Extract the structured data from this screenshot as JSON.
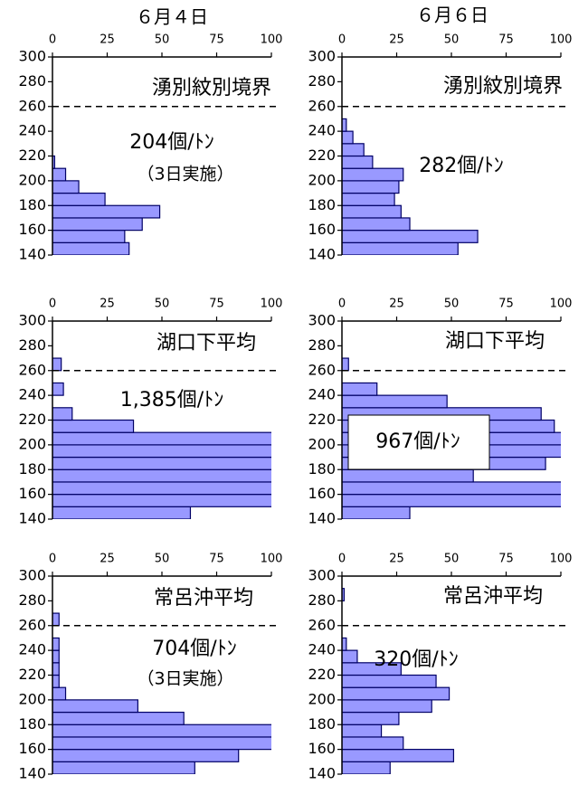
{
  "column_titles": [
    "６月４日",
    "６月６日"
  ],
  "chart_data": [
    {
      "type": "histogram",
      "label": "湧別紋別境界",
      "annotation": "204個/ﾄﾝ",
      "note": "（3日実施）",
      "bins": [
        140,
        150,
        160,
        170,
        180,
        190,
        200,
        210,
        220,
        230,
        240,
        250,
        260,
        270,
        280,
        290,
        300
      ],
      "values": [
        35,
        33,
        41,
        49,
        24,
        12,
        6,
        1,
        0,
        0,
        0,
        0,
        0,
        0,
        0,
        0
      ],
      "xlim": [
        0,
        100
      ],
      "xticks": [
        0,
        25,
        50,
        75,
        100
      ],
      "ylim": [
        140,
        300
      ],
      "yticks": [
        140,
        160,
        180,
        200,
        220,
        240,
        260,
        280,
        300
      ],
      "reference_line": 260,
      "color": "#9999ff",
      "annotation_box": false
    },
    {
      "type": "histogram",
      "label": "湧別紋別境界",
      "annotation": "282個/ﾄﾝ",
      "bins": [
        140,
        150,
        160,
        170,
        180,
        190,
        200,
        210,
        220,
        230,
        240,
        250,
        260,
        270,
        280,
        290,
        300
      ],
      "values": [
        53,
        62,
        31,
        27,
        24,
        26,
        28,
        14,
        10,
        5,
        2,
        0,
        0,
        0,
        0,
        0
      ],
      "xlim": [
        0,
        100
      ],
      "xticks": [
        0,
        25,
        50,
        75,
        100
      ],
      "ylim": [
        140,
        300
      ],
      "yticks": [
        140,
        160,
        180,
        200,
        220,
        240,
        260,
        280,
        300
      ],
      "reference_line": 260,
      "color": "#9999ff",
      "annotation_box": false
    },
    {
      "type": "histogram",
      "label": "湖口下平均",
      "annotation": "1,385個/ﾄﾝ",
      "bins": [
        140,
        150,
        160,
        170,
        180,
        190,
        200,
        210,
        220,
        230,
        240,
        250,
        260,
        270,
        280,
        290,
        300
      ],
      "values": [
        63,
        110,
        110,
        110,
        110,
        110,
        110,
        37,
        9,
        0,
        5,
        0,
        4,
        0,
        0,
        0
      ],
      "xlim": [
        0,
        100
      ],
      "xticks": [
        0,
        25,
        50,
        75,
        100
      ],
      "ylim": [
        140,
        300
      ],
      "yticks": [
        140,
        160,
        180,
        200,
        220,
        240,
        260,
        280,
        300
      ],
      "reference_line": 260,
      "color": "#9999ff",
      "annotation_box": false
    },
    {
      "type": "histogram",
      "label": "湖口下平均",
      "annotation": "967個/ﾄﾝ",
      "bins": [
        140,
        150,
        160,
        170,
        180,
        190,
        200,
        210,
        220,
        230,
        240,
        250,
        260,
        270,
        280,
        290,
        300
      ],
      "values": [
        31,
        110,
        110,
        60,
        93,
        110,
        110,
        97,
        91,
        48,
        16,
        0,
        3,
        0,
        0,
        0
      ],
      "xlim": [
        0,
        100
      ],
      "xticks": [
        0,
        25,
        50,
        75,
        100
      ],
      "ylim": [
        140,
        300
      ],
      "yticks": [
        140,
        160,
        180,
        200,
        220,
        240,
        260,
        280,
        300
      ],
      "reference_line": 260,
      "color": "#9999ff",
      "annotation_box": true
    },
    {
      "type": "histogram",
      "label": "常呂沖平均",
      "annotation": "704個/ﾄﾝ",
      "note": "（3日実施）",
      "bins": [
        140,
        150,
        160,
        170,
        180,
        190,
        200,
        210,
        220,
        230,
        240,
        250,
        260,
        270,
        280,
        290,
        300
      ],
      "values": [
        65,
        85,
        110,
        110,
        60,
        39,
        6,
        3,
        3,
        3,
        3,
        0,
        3,
        0,
        0,
        0
      ],
      "xlim": [
        0,
        100
      ],
      "xticks": [
        0,
        25,
        50,
        75,
        100
      ],
      "ylim": [
        140,
        300
      ],
      "yticks": [
        140,
        160,
        180,
        200,
        220,
        240,
        260,
        280,
        300
      ],
      "reference_line": 260,
      "color": "#9999ff",
      "annotation_box": false
    },
    {
      "type": "histogram",
      "label": "常呂沖平均",
      "annotation": "320個/ﾄﾝ",
      "bins": [
        140,
        150,
        160,
        170,
        180,
        190,
        200,
        210,
        220,
        230,
        240,
        250,
        260,
        270,
        280,
        290,
        300
      ],
      "values": [
        22,
        51,
        28,
        18,
        26,
        41,
        49,
        43,
        27,
        7,
        2,
        0,
        0,
        0,
        1,
        0
      ],
      "xlim": [
        0,
        100
      ],
      "xticks": [
        0,
        25,
        50,
        75,
        100
      ],
      "ylim": [
        140,
        300
      ],
      "yticks": [
        140,
        160,
        180,
        200,
        220,
        240,
        260,
        280,
        300
      ],
      "reference_line": 260,
      "color": "#9999ff",
      "annotation_box": false
    }
  ]
}
